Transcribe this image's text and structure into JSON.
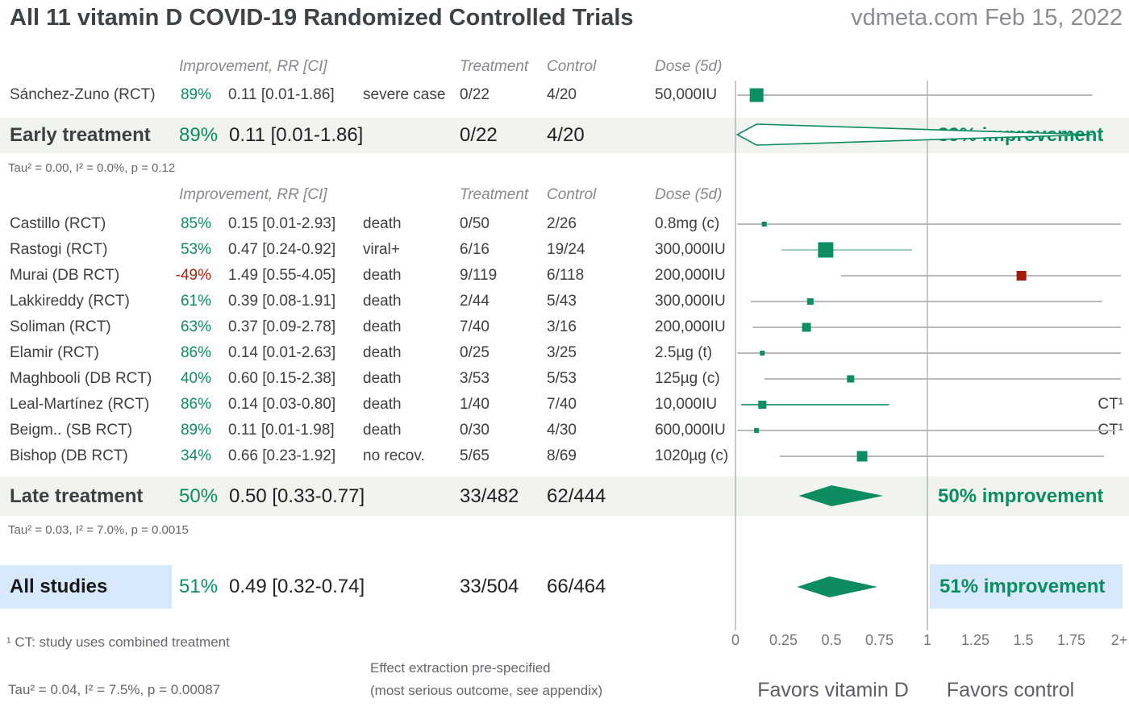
{
  "header": {
    "title": "All 11 vitamin D COVID-19 Randomized Controlled Trials",
    "source": "vdmeta.com Feb 15, 2022"
  },
  "columns": {
    "improvement": "Improvement, RR [CI]",
    "treatment": "Treatment",
    "control": "Control",
    "dose": "Dose (5d)"
  },
  "footnotes": {
    "ct": "¹ CT: study uses combined treatment",
    "effect_line1": "Effect extraction pre-specified",
    "effect_line2": "(most serious outcome, see appendix)"
  },
  "colors": {
    "green": "#0d8b61",
    "red": "#a3240e",
    "gray_ci": "#b6b9bc",
    "band": "#f0f3ee",
    "blue_highlight": "#d6e8fa"
  },
  "chart_data": {
    "type": "forest",
    "title": "All 11 vitamin D COVID-19 Randomized Controlled Trials",
    "x_axis": {
      "min": 0,
      "max": 2,
      "ref_lines": [
        0,
        1
      ],
      "ticks": [
        {
          "v": 0,
          "label": "0"
        },
        {
          "v": 0.25,
          "label": "0.25"
        },
        {
          "v": 0.5,
          "label": "0.5"
        },
        {
          "v": 0.75,
          "label": "0.75"
        },
        {
          "v": 1,
          "label": "1"
        },
        {
          "v": 1.25,
          "label": "1.25"
        },
        {
          "v": 1.5,
          "label": "1.5"
        },
        {
          "v": 1.75,
          "label": "1.75"
        },
        {
          "v": 2,
          "label": "2+"
        }
      ],
      "label_left": "Favors vitamin D",
      "label_right": "Favors control"
    },
    "early": {
      "studies": [
        {
          "name": "Sánchez-Zuno (RCT)",
          "pct": "89%",
          "pct_color": "#0d8b61",
          "rr_ci": "0.11 [0.01-1.86]",
          "outcome": "severe case",
          "treatment": "0/22",
          "control": "4/20",
          "dose": "50,000IU",
          "note": "",
          "rr": 0.11,
          "lo": 0.01,
          "hi": 1.86,
          "size": 17,
          "marker_color": "#0e8c63",
          "ci_color": "#b6b9bc"
        }
      ],
      "summary": {
        "label": "Early treatment",
        "pct": "89%",
        "rr_ci": "0.11 [0.01-1.86]",
        "treatment": "0/22",
        "control": "4/20",
        "improvement": "89% improvement",
        "rr": 0.11,
        "lo": 0.01,
        "hi": 1.86,
        "style": "outline"
      },
      "heterogeneity": "Tau² = 0.00, I² = 0.0%, p = 0.12"
    },
    "late": {
      "studies": [
        {
          "name": "Castillo (RCT)",
          "pct": "85%",
          "pct_color": "#0d8b61",
          "rr_ci": "0.15 [0.01-2.93]",
          "outcome": "death",
          "treatment": "0/50",
          "control": "2/26",
          "dose": "0.8mg (c)",
          "note": "",
          "rr": 0.15,
          "lo": 0.01,
          "hi": 2.93,
          "size": 6,
          "marker_color": "#0e8c63",
          "ci_color": "#b6b9bc"
        },
        {
          "name": "Rastogi (RCT)",
          "pct": "53%",
          "pct_color": "#0d8b61",
          "rr_ci": "0.47 [0.24-0.92]",
          "outcome": "viral+",
          "treatment": "6/16",
          "control": "19/24",
          "dose": "300,000IU",
          "note": "",
          "rr": 0.47,
          "lo": 0.24,
          "hi": 0.92,
          "size": 19,
          "marker_color": "#0e8c63",
          "ci_color": "#9ad0bd"
        },
        {
          "name": "Murai (DB RCT)",
          "pct": "-49%",
          "pct_color": "#a3240e",
          "rr_ci": "1.49 [0.55-4.05]",
          "outcome": "death",
          "treatment": "9/119",
          "control": "6/118",
          "dose": "200,000IU",
          "note": "",
          "rr": 1.49,
          "lo": 0.55,
          "hi": 4.05,
          "size": 12,
          "marker_color": "#a01d0e",
          "ci_color": "#b6b9bc"
        },
        {
          "name": "Lakkireddy (RCT)",
          "pct": "61%",
          "pct_color": "#0d8b61",
          "rr_ci": "0.39 [0.08-1.91]",
          "outcome": "death",
          "treatment": "2/44",
          "control": "5/43",
          "dose": "300,000IU",
          "note": "",
          "rr": 0.39,
          "lo": 0.08,
          "hi": 1.91,
          "size": 8,
          "marker_color": "#0e8c63",
          "ci_color": "#b6b9bc"
        },
        {
          "name": "Soliman (RCT)",
          "pct": "63%",
          "pct_color": "#0d8b61",
          "rr_ci": "0.37 [0.09-2.78]",
          "outcome": "death",
          "treatment": "7/40",
          "control": "3/16",
          "dose": "200,000IU",
          "note": "",
          "rr": 0.37,
          "lo": 0.09,
          "hi": 2.78,
          "size": 11,
          "marker_color": "#0e8c63",
          "ci_color": "#b6b9bc"
        },
        {
          "name": "Elamir (RCT)",
          "pct": "86%",
          "pct_color": "#0d8b61",
          "rr_ci": "0.14 [0.01-2.63]",
          "outcome": "death",
          "treatment": "0/25",
          "control": "3/25",
          "dose": "2.5µg (t)",
          "note": "",
          "rr": 0.14,
          "lo": 0.01,
          "hi": 2.63,
          "size": 6,
          "marker_color": "#0e8c63",
          "ci_color": "#b6b9bc"
        },
        {
          "name": "Maghbooli (DB RCT)",
          "pct": "40%",
          "pct_color": "#0d8b61",
          "rr_ci": "0.60 [0.15-2.38]",
          "outcome": "death",
          "treatment": "3/53",
          "control": "5/53",
          "dose": "125µg (c)",
          "note": "",
          "rr": 0.6,
          "lo": 0.15,
          "hi": 2.38,
          "size": 9,
          "marker_color": "#0e8c63",
          "ci_color": "#b6b9bc"
        },
        {
          "name": "Leal-Martínez (RCT)",
          "pct": "86%",
          "pct_color": "#0d8b61",
          "rr_ci": "0.14 [0.03-0.80]",
          "outcome": "death",
          "treatment": "1/40",
          "control": "7/40",
          "dose": "10,000IU",
          "note": "CT¹",
          "rr": 0.14,
          "lo": 0.03,
          "hi": 0.8,
          "size": 10,
          "marker_color": "#0e8c63",
          "ci_color": "#3ea085"
        },
        {
          "name": "Beigm.. (SB RCT)",
          "pct": "89%",
          "pct_color": "#0d8b61",
          "rr_ci": "0.11 [0.01-1.98]",
          "outcome": "death",
          "treatment": "0/30",
          "control": "4/30",
          "dose": "600,000IU",
          "note": "CT¹",
          "rr": 0.11,
          "lo": 0.01,
          "hi": 1.98,
          "size": 6,
          "marker_color": "#0e8c63",
          "ci_color": "#b6b9bc"
        },
        {
          "name": "Bishop (DB RCT)",
          "pct": "34%",
          "pct_color": "#0d8b61",
          "rr_ci": "0.66 [0.23-1.92]",
          "outcome": "no recov.",
          "treatment": "5/65",
          "control": "8/69",
          "dose": "1020µg (c)",
          "note": "",
          "rr": 0.66,
          "lo": 0.23,
          "hi": 1.92,
          "size": 13,
          "marker_color": "#0e8c63",
          "ci_color": "#b6b9bc"
        }
      ],
      "summary": {
        "label": "Late treatment",
        "pct": "50%",
        "rr_ci": "0.50 [0.33-0.77]",
        "treatment": "33/482",
        "control": "62/444",
        "improvement": "50% improvement",
        "rr": 0.5,
        "lo": 0.33,
        "hi": 0.77,
        "style": "filled"
      },
      "heterogeneity": "Tau² = 0.03, I² = 7.0%, p = 0.0015"
    },
    "all": {
      "summary": {
        "label": "All studies",
        "pct": "51%",
        "rr_ci": "0.49 [0.32-0.74]",
        "treatment": "33/504",
        "control": "66/464",
        "improvement": "51% improvement",
        "rr": 0.49,
        "lo": 0.32,
        "hi": 0.74,
        "style": "filled"
      },
      "heterogeneity": "Tau² = 0.04, I² = 7.5%, p = 0.00087"
    }
  }
}
